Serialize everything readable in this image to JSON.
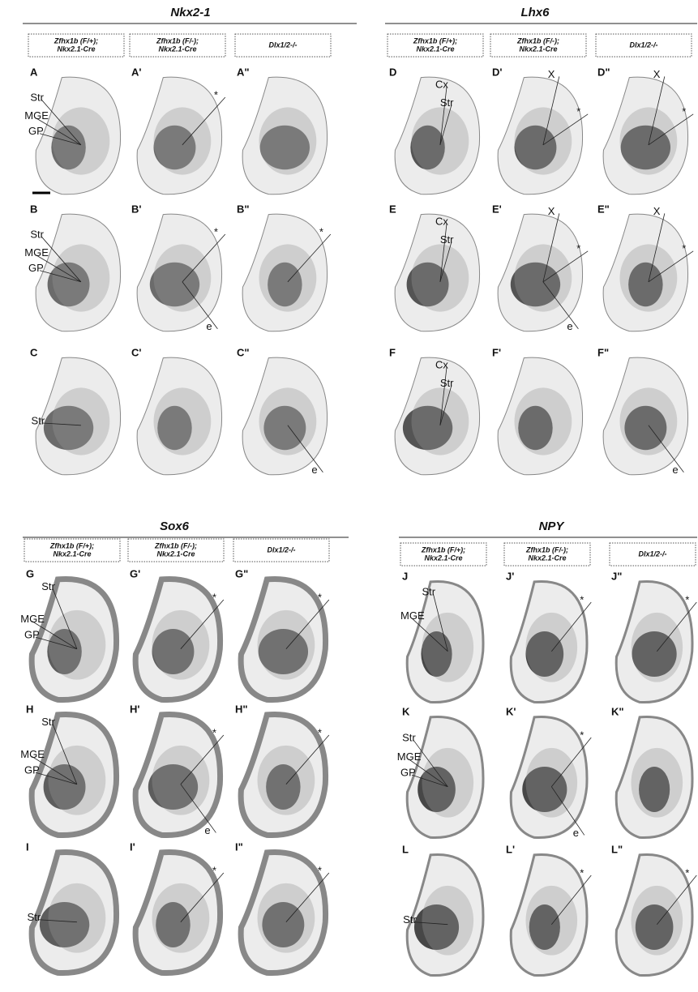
{
  "figure": [
    {
      "title": "Nkx2-1",
      "columns": [
        [
          "Zfhx1b (F/+);",
          "Nkx2.1-Cre"
        ],
        [
          "Zfhx1b (F/-);",
          "Nkx2.1-Cre"
        ],
        [
          "Dlx1/2-/-"
        ]
      ],
      "rows": [
        [
          {
            "label": "A",
            "annotations": [
              "Str",
              "MGE",
              "GP"
            ]
          },
          {
            "label": "A'",
            "annotations": [
              "*"
            ]
          },
          {
            "label": "A\"",
            "annotations": []
          }
        ],
        [
          {
            "label": "B",
            "annotations": [
              "Str",
              "MGE",
              "GP"
            ]
          },
          {
            "label": "B'",
            "annotations": [
              "*",
              "e"
            ]
          },
          {
            "label": "B\"",
            "annotations": [
              "*"
            ]
          }
        ],
        [
          {
            "label": "C",
            "annotations": [
              "Str"
            ]
          },
          {
            "label": "C'",
            "annotations": []
          },
          {
            "label": "C\"",
            "annotations": [
              "e"
            ]
          }
        ]
      ]
    },
    {
      "title": "Lhx6",
      "columns": [
        [
          "Zfhx1b (F/+);",
          "Nkx2.1-Cre"
        ],
        [
          "Zfhx1b (F/-);",
          "Nkx2.1-Cre"
        ],
        [
          "Dlx1/2-/-"
        ]
      ],
      "rows": [
        [
          {
            "label": "D",
            "annotations": [
              "Cx",
              "Str"
            ]
          },
          {
            "label": "D'",
            "annotations": [
              "X",
              "*"
            ]
          },
          {
            "label": "D\"",
            "annotations": [
              "X",
              "*"
            ]
          }
        ],
        [
          {
            "label": "E",
            "annotations": [
              "Cx",
              "Str"
            ]
          },
          {
            "label": "E'",
            "annotations": [
              "X",
              "*",
              "e"
            ]
          },
          {
            "label": "E\"",
            "annotations": [
              "X",
              "*"
            ]
          }
        ],
        [
          {
            "label": "F",
            "annotations": [
              "Cx",
              "Str"
            ]
          },
          {
            "label": "F'",
            "annotations": []
          },
          {
            "label": "F\"",
            "annotations": [
              "e"
            ]
          }
        ]
      ]
    },
    {
      "title": "Sox6",
      "columns": [
        [
          "Zfhx1b (F/+);",
          "Nkx2.1-Cre"
        ],
        [
          "Zfhx1b (F/-);",
          "Nkx2.1-Cre"
        ],
        [
          "Dlx1/2-/-"
        ]
      ],
      "rows": [
        [
          {
            "label": "G",
            "annotations": [
              "Str",
              "MGE",
              "GP"
            ]
          },
          {
            "label": "G'",
            "annotations": [
              "*"
            ]
          },
          {
            "label": "G\"",
            "annotations": [
              "*"
            ]
          }
        ],
        [
          {
            "label": "H",
            "annotations": [
              "Str",
              "MGE",
              "GP"
            ]
          },
          {
            "label": "H'",
            "annotations": [
              "*",
              "e"
            ]
          },
          {
            "label": "H\"",
            "annotations": [
              "*"
            ]
          }
        ],
        [
          {
            "label": "I",
            "annotations": [
              "Str"
            ]
          },
          {
            "label": "I'",
            "annotations": [
              "*"
            ]
          },
          {
            "label": "I\"",
            "annotations": [
              "*"
            ]
          }
        ]
      ]
    },
    {
      "title": "NPY",
      "columns": [
        [
          "Zfhx1b (F/+);",
          "Nkx2.1-Cre"
        ],
        [
          "Zfhx1b (F/-);",
          "Nkx2.1-Cre"
        ],
        [
          "Dlx1/2-/-"
        ]
      ],
      "rows": [
        [
          {
            "label": "J",
            "annotations": [
              "Str",
              "MGE"
            ]
          },
          {
            "label": "J'",
            "annotations": [
              "*"
            ]
          },
          {
            "label": "J\"",
            "annotations": [
              "*"
            ]
          }
        ],
        [
          {
            "label": "K",
            "annotations": [
              "Str",
              "MGE",
              "GP"
            ]
          },
          {
            "label": "K'",
            "annotations": [
              "*",
              "e"
            ]
          },
          {
            "label": "K\"",
            "annotations": []
          }
        ],
        [
          {
            "label": "L",
            "annotations": [
              "Str"
            ]
          },
          {
            "label": "L'",
            "annotations": [
              "*"
            ]
          },
          {
            "label": "L\"",
            "annotations": [
              "*"
            ]
          }
        ]
      ]
    }
  ]
}
